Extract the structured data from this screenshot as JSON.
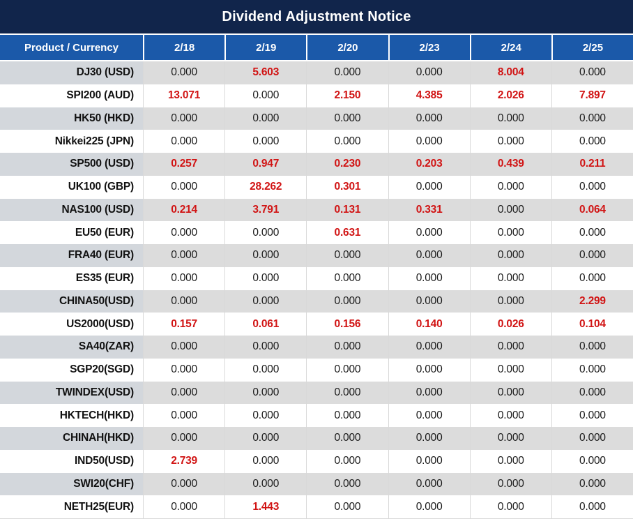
{
  "title": "Dividend Adjustment Notice",
  "colors": {
    "title_bar_bg": "#11254B",
    "header_row_bg": "#1B59A9",
    "alt_row_bg": "#DCDCDC",
    "alt_row_product_bg": "#D3D7DC",
    "highlight_red": "#D11414",
    "value_text": "#1A1A1A",
    "header_text": "#FFFFFF"
  },
  "table": {
    "product_header": "Product / Currency",
    "date_headers": [
      "2/18",
      "2/19",
      "2/20",
      "2/23",
      "2/24",
      "2/25"
    ],
    "zero_value": "0.000",
    "rows": [
      {
        "product": "DJ30 (USD)",
        "values": [
          "0.000",
          "5.603",
          "0.000",
          "0.000",
          "8.004",
          "0.000"
        ]
      },
      {
        "product": "SPI200 (AUD)",
        "values": [
          "13.071",
          "0.000",
          "2.150",
          "4.385",
          "2.026",
          "7.897"
        ]
      },
      {
        "product": "HK50 (HKD)",
        "values": [
          "0.000",
          "0.000",
          "0.000",
          "0.000",
          "0.000",
          "0.000"
        ]
      },
      {
        "product": "Nikkei225 (JPN)",
        "values": [
          "0.000",
          "0.000",
          "0.000",
          "0.000",
          "0.000",
          "0.000"
        ]
      },
      {
        "product": "SP500 (USD)",
        "values": [
          "0.257",
          "0.947",
          "0.230",
          "0.203",
          "0.439",
          "0.211"
        ]
      },
      {
        "product": "UK100 (GBP)",
        "values": [
          "0.000",
          "28.262",
          "0.301",
          "0.000",
          "0.000",
          "0.000"
        ]
      },
      {
        "product": "NAS100 (USD)",
        "values": [
          "0.214",
          "3.791",
          "0.131",
          "0.331",
          "0.000",
          "0.064"
        ]
      },
      {
        "product": "EU50 (EUR)",
        "values": [
          "0.000",
          "0.000",
          "0.631",
          "0.000",
          "0.000",
          "0.000"
        ]
      },
      {
        "product": "FRA40 (EUR)",
        "values": [
          "0.000",
          "0.000",
          "0.000",
          "0.000",
          "0.000",
          "0.000"
        ]
      },
      {
        "product": "ES35 (EUR)",
        "values": [
          "0.000",
          "0.000",
          "0.000",
          "0.000",
          "0.000",
          "0.000"
        ]
      },
      {
        "product": "CHINA50(USD)",
        "values": [
          "0.000",
          "0.000",
          "0.000",
          "0.000",
          "0.000",
          "2.299"
        ]
      },
      {
        "product": "US2000(USD)",
        "values": [
          "0.157",
          "0.061",
          "0.156",
          "0.140",
          "0.026",
          "0.104"
        ]
      },
      {
        "product": "SA40(ZAR)",
        "values": [
          "0.000",
          "0.000",
          "0.000",
          "0.000",
          "0.000",
          "0.000"
        ]
      },
      {
        "product": "SGP20(SGD)",
        "values": [
          "0.000",
          "0.000",
          "0.000",
          "0.000",
          "0.000",
          "0.000"
        ]
      },
      {
        "product": "TWINDEX(USD)",
        "values": [
          "0.000",
          "0.000",
          "0.000",
          "0.000",
          "0.000",
          "0.000"
        ]
      },
      {
        "product": "HKTECH(HKD)",
        "values": [
          "0.000",
          "0.000",
          "0.000",
          "0.000",
          "0.000",
          "0.000"
        ]
      },
      {
        "product": "CHINAH(HKD)",
        "values": [
          "0.000",
          "0.000",
          "0.000",
          "0.000",
          "0.000",
          "0.000"
        ]
      },
      {
        "product": "IND50(USD)",
        "values": [
          "2.739",
          "0.000",
          "0.000",
          "0.000",
          "0.000",
          "0.000"
        ]
      },
      {
        "product": "SWI20(CHF)",
        "values": [
          "0.000",
          "0.000",
          "0.000",
          "0.000",
          "0.000",
          "0.000"
        ]
      },
      {
        "product": "NETH25(EUR)",
        "values": [
          "0.000",
          "1.443",
          "0.000",
          "0.000",
          "0.000",
          "0.000"
        ]
      }
    ]
  }
}
